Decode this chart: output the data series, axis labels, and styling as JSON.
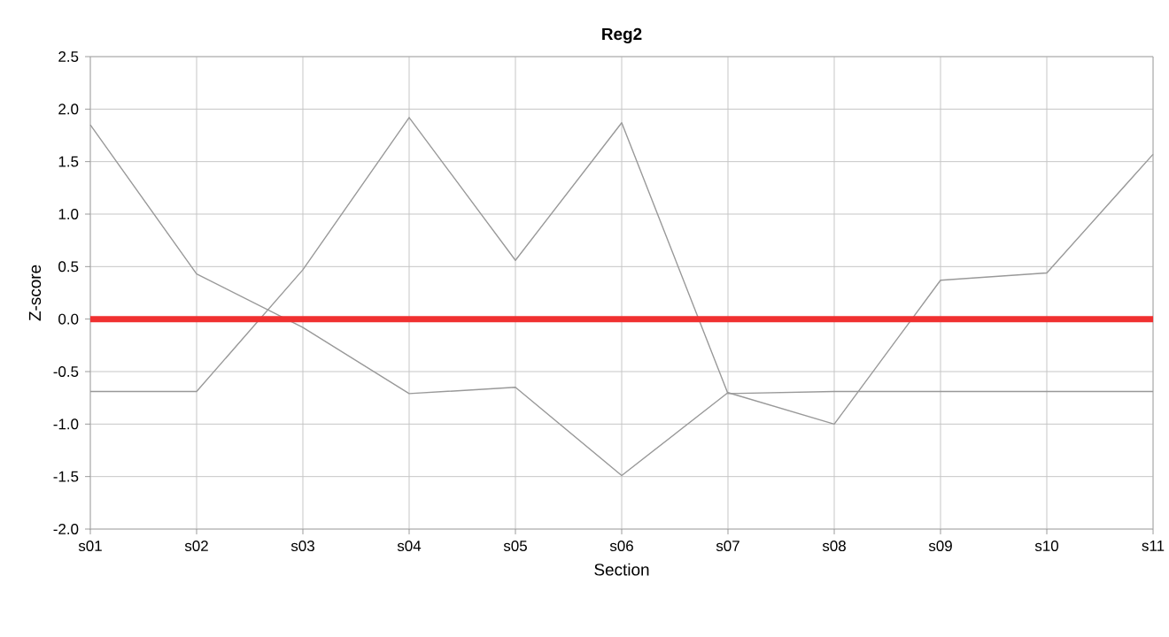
{
  "chart_data": {
    "type": "line",
    "title": "Reg2",
    "xlabel": "Section",
    "ylabel": "Z-score",
    "categories": [
      "s01",
      "s02",
      "s03",
      "s04",
      "s05",
      "s06",
      "s07",
      "s08",
      "s09",
      "s10",
      "s11"
    ],
    "series": [
      {
        "color": "#999999",
        "values": [
          1.85,
          0.43,
          -0.08,
          -0.71,
          -0.65,
          -1.49,
          -0.7,
          -1.0,
          0.37,
          0.44,
          1.57
        ]
      },
      {
        "color": "#999999",
        "values": [
          -0.69,
          -0.69,
          0.47,
          1.92,
          0.56,
          1.87,
          -0.71,
          -0.69,
          -0.69,
          -0.69,
          -0.69
        ]
      }
    ],
    "ref_lines": [
      {
        "axis": "y",
        "value": 0,
        "color": "#f03030"
      }
    ],
    "ylim": [
      -2.0,
      2.5
    ],
    "yticks": [
      {
        "value": -2,
        "label": "-2.0"
      },
      -1.5,
      {
        "value": -1,
        "label": "-1.0"
      },
      -0.5,
      {
        "value": 0,
        "label": "0.0"
      },
      0.5,
      {
        "value": 1,
        "label": "1.0"
      },
      1.5,
      {
        "value": 2,
        "label": "2.0"
      },
      2.5
    ],
    "grid": true,
    "marker": "none",
    "line_style": "solid"
  }
}
